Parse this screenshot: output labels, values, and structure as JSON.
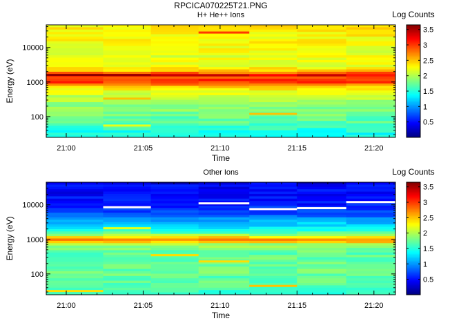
{
  "figure_title": "RPCICA070225T21.PNG",
  "chart_data": [
    {
      "type": "heatmap",
      "title": "H+ He++ Ions",
      "xlabel": "Time",
      "ylabel": "Energy (eV)",
      "x_tick_labels": [
        "21:00",
        "21:05",
        "21:10",
        "21:15",
        "21:20"
      ],
      "x_tick_values_min": [
        0,
        5,
        10,
        15,
        20
      ],
      "xlim_min": [
        -1.3,
        21.4
      ],
      "y_scale": "log",
      "y_tick_labels": [
        "100",
        "1000",
        "10000"
      ],
      "y_tick_values": [
        100,
        1000,
        10000
      ],
      "ylim": [
        25,
        45000
      ],
      "colorbar_label": "Log Counts",
      "colorbar_tick_labels": [
        "0.5",
        "1",
        "1.5",
        "2",
        "2.5",
        "3",
        "3.5"
      ],
      "colorbar_tick_values": [
        0.5,
        1,
        1.5,
        2,
        2.5,
        3,
        3.5
      ],
      "colorbar_range": [
        0,
        3.65
      ],
      "time_blocks_min": [
        [
          -1.3,
          2.4
        ],
        [
          2.4,
          5.5
        ],
        [
          5.5,
          8.6
        ],
        [
          8.6,
          11.9
        ],
        [
          11.9,
          15.0
        ],
        [
          15.0,
          18.2
        ],
        [
          18.2,
          21.4
        ]
      ],
      "energy_profile": [
        {
          "energy": 28,
          "value": 1.4
        },
        {
          "energy": 40,
          "value": 1.5
        },
        {
          "energy": 60,
          "value": 1.65
        },
        {
          "energy": 100,
          "value": 1.75
        },
        {
          "energy": 200,
          "value": 1.9
        },
        {
          "energy": 400,
          "value": 2.1
        },
        {
          "energy": 700,
          "value": 2.4
        },
        {
          "energy": 900,
          "value": 2.9
        },
        {
          "energy": 1100,
          "value": 3.1
        },
        {
          "energy": 1300,
          "value": 2.8
        },
        {
          "energy": 1500,
          "value": 3.35
        },
        {
          "energy": 1700,
          "value": 3.1
        },
        {
          "energy": 2000,
          "value": 2.5
        },
        {
          "energy": 3000,
          "value": 2.2
        },
        {
          "energy": 6000,
          "value": 2.2
        },
        {
          "energy": 20000,
          "value": 2.3
        },
        {
          "energy": 45000,
          "value": 2.35
        }
      ],
      "highlights": [
        {
          "block": 0,
          "energy": 1600,
          "value": 3.6
        },
        {
          "block": 1,
          "energy": 1600,
          "value": 3.55
        },
        {
          "block": 3,
          "energy": 27000,
          "value": 3.0
        },
        {
          "block": 1,
          "energy": 330,
          "value": 2.5
        },
        {
          "block": 4,
          "energy": 120,
          "value": 2.5
        },
        {
          "block": 1,
          "energy": 55,
          "value": 2.2
        }
      ]
    },
    {
      "type": "heatmap",
      "title": "Other Ions",
      "xlabel": "Time",
      "ylabel": "Energy (eV)",
      "x_tick_labels": [
        "21:00",
        "21:05",
        "21:10",
        "21:15",
        "21:20"
      ],
      "x_tick_values_min": [
        0,
        5,
        10,
        15,
        20
      ],
      "xlim_min": [
        -1.3,
        21.4
      ],
      "y_scale": "log",
      "y_tick_labels": [
        "100",
        "1000",
        "10000"
      ],
      "y_tick_values": [
        100,
        1000,
        10000
      ],
      "ylim": [
        25,
        45000
      ],
      "colorbar_label": "Log Counts",
      "colorbar_tick_labels": [
        "0.5",
        "1",
        "1.5",
        "2",
        "2.5",
        "3",
        "3.5"
      ],
      "colorbar_tick_values": [
        0.5,
        1,
        1.5,
        2,
        2.5,
        3,
        3.5
      ],
      "colorbar_range": [
        0,
        3.65
      ],
      "time_blocks_min": [
        [
          -1.3,
          2.4
        ],
        [
          2.4,
          5.5
        ],
        [
          5.5,
          8.6
        ],
        [
          8.6,
          11.9
        ],
        [
          11.9,
          15.0
        ],
        [
          15.0,
          18.2
        ],
        [
          18.2,
          21.4
        ]
      ],
      "energy_profile": [
        {
          "energy": 28,
          "value": 1.6
        },
        {
          "energy": 60,
          "value": 1.7
        },
        {
          "energy": 100,
          "value": 1.75
        },
        {
          "energy": 200,
          "value": 1.75
        },
        {
          "energy": 400,
          "value": 1.7
        },
        {
          "energy": 700,
          "value": 1.9
        },
        {
          "energy": 950,
          "value": 2.8
        },
        {
          "energy": 1100,
          "value": 2.5
        },
        {
          "energy": 1400,
          "value": 1.8
        },
        {
          "energy": 2000,
          "value": 1.35
        },
        {
          "energy": 3000,
          "value": 1.15
        },
        {
          "energy": 5000,
          "value": 0.8
        },
        {
          "energy": 10000,
          "value": 0.55
        },
        {
          "energy": 20000,
          "value": 0.45
        },
        {
          "energy": 45000,
          "value": 0.45
        }
      ],
      "highlights": [
        {
          "block": 5,
          "energy": 42000,
          "value": 0.2
        },
        {
          "block": 2,
          "energy": 42000,
          "value": 0.15
        },
        {
          "block": 0,
          "energy": 32,
          "value": 2.4
        },
        {
          "block": 1,
          "energy": 2100,
          "value": 2.2
        },
        {
          "block": 4,
          "energy": 45,
          "value": 2.5
        },
        {
          "block": 3,
          "energy": 230,
          "value": 2.4
        },
        {
          "block": 2,
          "energy": 350,
          "value": 2.4
        }
      ],
      "gaps": [
        {
          "block": 1,
          "energy": 8500
        },
        {
          "block": 3,
          "energy": 11000
        },
        {
          "block": 4,
          "energy": 7500
        },
        {
          "block": 5,
          "energy": 8000
        },
        {
          "block": 6,
          "energy": 12000
        }
      ]
    }
  ]
}
